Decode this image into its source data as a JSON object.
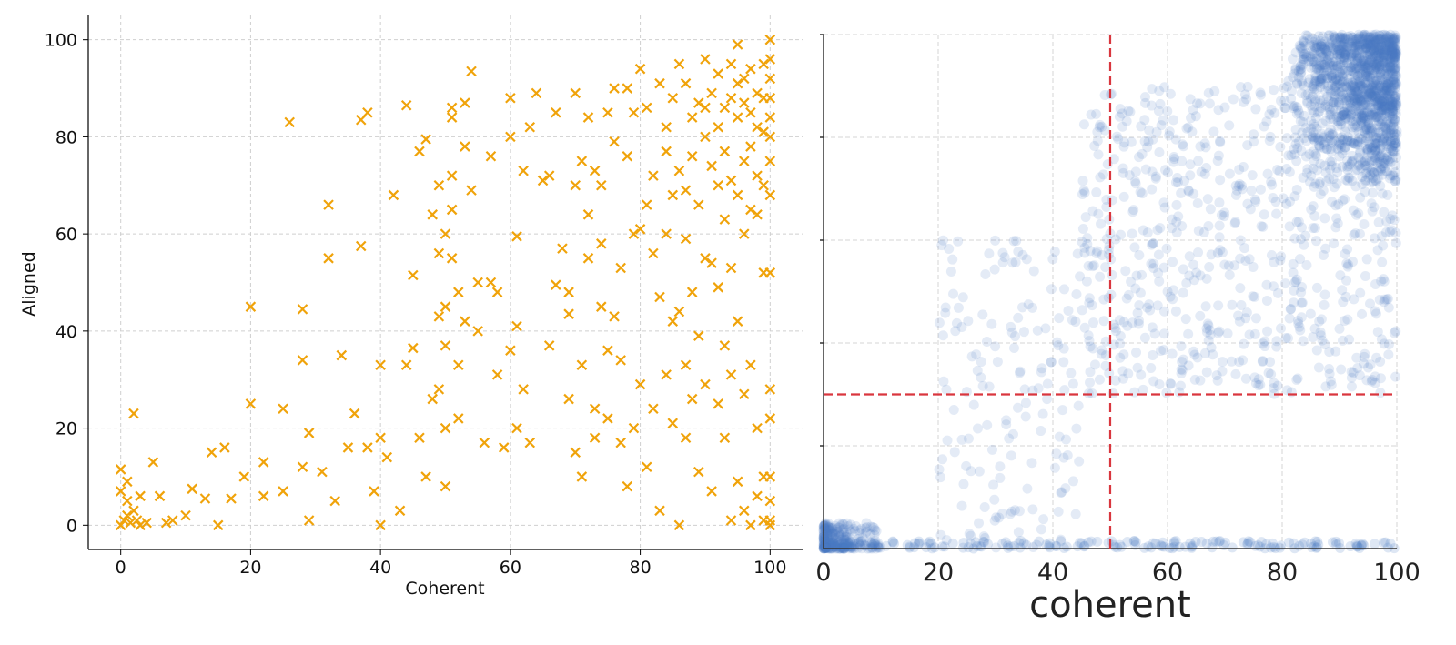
{
  "chart_data": [
    {
      "type": "scatter",
      "xlabel": "Coherent",
      "ylabel": "Aligned",
      "xlim": [
        -5,
        105
      ],
      "ylim": [
        -5,
        105
      ],
      "x_ticks": [
        0,
        20,
        40,
        60,
        80,
        100
      ],
      "y_ticks": [
        0,
        20,
        40,
        60,
        80,
        100
      ],
      "marker": "x",
      "color": "#F0A30A",
      "grid": true,
      "series": [
        {
          "points": [
            [
              0,
              0
            ],
            [
              0.5,
              1
            ],
            [
              1,
              2
            ],
            [
              1.5,
              0.5
            ],
            [
              2,
              3
            ],
            [
              2.5,
              1
            ],
            [
              3,
              0
            ],
            [
              0,
              7
            ],
            [
              0,
              11.5
            ],
            [
              1,
              9
            ],
            [
              1,
              5
            ],
            [
              2,
              23
            ],
            [
              3,
              6
            ],
            [
              4,
              0.5
            ],
            [
              5,
              13
            ],
            [
              6,
              6
            ],
            [
              7,
              0.5
            ],
            [
              8,
              1
            ],
            [
              10,
              2
            ],
            [
              11,
              7.5
            ],
            [
              13,
              5.5
            ],
            [
              14,
              15
            ],
            [
              15,
              0
            ],
            [
              16,
              16
            ],
            [
              17,
              5.5
            ],
            [
              19,
              10
            ],
            [
              20,
              25
            ],
            [
              20,
              45
            ],
            [
              22,
              13
            ],
            [
              22,
              6
            ],
            [
              25,
              24
            ],
            [
              25,
              7
            ],
            [
              26,
              83
            ],
            [
              28,
              44.5
            ],
            [
              28,
              12
            ],
            [
              28,
              34
            ],
            [
              29,
              19
            ],
            [
              29,
              1
            ],
            [
              31,
              11
            ],
            [
              32,
              66
            ],
            [
              32,
              55
            ],
            [
              33,
              5
            ],
            [
              34,
              35
            ],
            [
              35,
              16
            ],
            [
              36,
              23
            ],
            [
              37,
              57.5
            ],
            [
              37,
              83.5
            ],
            [
              38,
              85
            ],
            [
              38,
              16
            ],
            [
              39,
              7
            ],
            [
              40,
              18
            ],
            [
              40,
              33
            ],
            [
              40,
              0
            ],
            [
              41,
              14
            ],
            [
              42,
              68
            ],
            [
              43,
              3
            ],
            [
              44,
              33
            ],
            [
              44,
              86.5
            ],
            [
              45,
              51.5
            ],
            [
              45,
              36.5
            ],
            [
              46,
              18
            ],
            [
              46,
              77
            ],
            [
              47,
              79.5
            ],
            [
              47,
              10
            ],
            [
              48,
              26
            ],
            [
              48,
              64
            ],
            [
              49,
              70
            ],
            [
              49,
              56
            ],
            [
              49,
              43
            ],
            [
              49,
              28
            ],
            [
              50,
              60
            ],
            [
              50,
              45
            ],
            [
              50,
              37
            ],
            [
              50,
              20
            ],
            [
              50,
              8
            ],
            [
              51,
              84
            ],
            [
              51,
              86
            ],
            [
              51,
              72
            ],
            [
              51,
              65
            ],
            [
              51,
              55
            ],
            [
              52,
              48
            ],
            [
              52,
              33
            ],
            [
              52,
              22
            ],
            [
              53,
              87
            ],
            [
              53,
              78
            ],
            [
              53,
              42
            ],
            [
              54,
              93.5
            ],
            [
              54,
              69
            ],
            [
              55,
              50
            ],
            [
              55,
              40
            ],
            [
              56,
              17
            ],
            [
              57,
              76
            ],
            [
              57,
              50
            ],
            [
              58,
              48
            ],
            [
              58,
              31
            ],
            [
              59,
              16
            ],
            [
              60,
              80
            ],
            [
              60,
              88
            ],
            [
              60,
              36
            ],
            [
              61,
              20
            ],
            [
              61,
              41
            ],
            [
              61,
              59.5
            ],
            [
              62,
              73
            ],
            [
              62,
              28
            ],
            [
              63,
              82
            ],
            [
              63,
              17
            ],
            [
              64,
              89
            ],
            [
              65,
              71
            ],
            [
              66,
              37
            ],
            [
              66,
              72
            ],
            [
              67,
              85
            ],
            [
              67,
              49.5
            ],
            [
              68,
              57
            ],
            [
              69,
              43.5
            ],
            [
              69,
              48
            ],
            [
              69,
              26
            ],
            [
              70,
              89
            ],
            [
              70,
              70
            ],
            [
              70,
              15
            ],
            [
              71,
              75
            ],
            [
              71,
              33
            ],
            [
              71,
              10
            ],
            [
              72,
              84
            ],
            [
              72,
              55
            ],
            [
              72,
              64
            ],
            [
              73,
              18
            ],
            [
              73,
              24
            ],
            [
              73,
              73
            ],
            [
              74,
              58
            ],
            [
              74,
              70
            ],
            [
              74,
              45
            ],
            [
              75,
              85
            ],
            [
              75,
              36
            ],
            [
              75,
              22
            ],
            [
              76,
              79
            ],
            [
              76,
              90
            ],
            [
              76,
              43
            ],
            [
              77,
              34
            ],
            [
              77,
              53
            ],
            [
              77,
              17
            ],
            [
              78,
              90
            ],
            [
              78,
              76
            ],
            [
              78,
              8
            ],
            [
              79,
              85
            ],
            [
              79,
              60
            ],
            [
              79,
              20
            ],
            [
              80,
              94
            ],
            [
              80,
              61
            ],
            [
              80,
              29
            ],
            [
              81,
              86
            ],
            [
              81,
              66
            ],
            [
              81,
              12
            ],
            [
              82,
              72
            ],
            [
              82,
              56
            ],
            [
              82,
              24
            ],
            [
              83,
              91
            ],
            [
              83,
              47
            ],
            [
              83,
              3
            ],
            [
              84,
              82
            ],
            [
              84,
              60
            ],
            [
              84,
              77
            ],
            [
              84,
              31
            ],
            [
              85,
              88
            ],
            [
              85,
              68
            ],
            [
              85,
              42
            ],
            [
              85,
              21
            ],
            [
              86,
              95
            ],
            [
              86,
              73
            ],
            [
              86,
              44
            ],
            [
              86,
              0
            ],
            [
              87,
              91
            ],
            [
              87,
              69
            ],
            [
              87,
              59
            ],
            [
              87,
              33
            ],
            [
              87,
              18
            ],
            [
              88,
              84
            ],
            [
              88,
              76
            ],
            [
              88,
              48
            ],
            [
              88,
              26
            ],
            [
              89,
              87
            ],
            [
              89,
              66
            ],
            [
              89,
              39
            ],
            [
              89,
              11
            ],
            [
              90,
              96
            ],
            [
              90,
              86
            ],
            [
              90,
              80
            ],
            [
              90,
              55
            ],
            [
              90,
              29
            ],
            [
              91,
              89
            ],
            [
              91,
              74
            ],
            [
              91,
              54
            ],
            [
              91,
              7
            ],
            [
              92,
              93
            ],
            [
              92,
              82
            ],
            [
              92,
              70
            ],
            [
              92,
              49
            ],
            [
              92,
              25
            ],
            [
              93,
              86
            ],
            [
              93,
              77
            ],
            [
              93,
              63
            ],
            [
              93,
              37
            ],
            [
              93,
              18
            ],
            [
              94,
              95
            ],
            [
              94,
              88
            ],
            [
              94,
              71
            ],
            [
              94,
              53
            ],
            [
              94,
              31
            ],
            [
              94,
              1
            ],
            [
              95,
              99
            ],
            [
              95,
              91
            ],
            [
              95,
              84
            ],
            [
              95,
              68
            ],
            [
              95,
              42
            ],
            [
              95,
              9
            ],
            [
              96,
              92
            ],
            [
              96,
              87
            ],
            [
              96,
              75
            ],
            [
              96,
              60
            ],
            [
              96,
              27
            ],
            [
              96,
              3
            ],
            [
              97,
              94
            ],
            [
              97,
              85
            ],
            [
              97,
              78
            ],
            [
              97,
              65
            ],
            [
              97,
              33
            ],
            [
              97,
              0
            ],
            [
              98,
              89
            ],
            [
              98,
              82
            ],
            [
              98,
              72
            ],
            [
              98,
              64
            ],
            [
              98,
              20
            ],
            [
              98,
              6
            ],
            [
              99,
              95
            ],
            [
              99,
              88
            ],
            [
              99,
              81
            ],
            [
              99,
              70
            ],
            [
              99,
              52
            ],
            [
              99,
              10
            ],
            [
              99,
              1
            ],
            [
              100,
              100
            ],
            [
              100,
              96
            ],
            [
              100,
              92
            ],
            [
              100,
              88
            ],
            [
              100,
              84
            ],
            [
              100,
              80
            ],
            [
              100,
              75
            ],
            [
              100,
              68
            ],
            [
              100,
              52
            ],
            [
              100,
              28
            ],
            [
              100,
              22
            ],
            [
              100,
              10
            ],
            [
              100,
              5
            ],
            [
              100,
              1
            ],
            [
              100,
              0
            ]
          ]
        }
      ]
    },
    {
      "type": "scatter",
      "xlabel": "coherent",
      "xlim": [
        0,
        100
      ],
      "ylim": [
        0,
        100
      ],
      "x_ticks": [
        0,
        20,
        40,
        60,
        80,
        100
      ],
      "marker": "circle",
      "color": "#4A7CC0",
      "opacity": 0.15,
      "grid": true,
      "reference_lines": {
        "vertical_x": 50,
        "horizontal_y": 30,
        "color": "#D9363E",
        "style": "dashed"
      },
      "density_regions": [
        {
          "x": [
            80,
            100
          ],
          "y": [
            70,
            100
          ],
          "level": "very high"
        },
        {
          "x": [
            0,
            10
          ],
          "y": [
            0,
            5
          ],
          "level": "high"
        },
        {
          "x": [
            45,
            100
          ],
          "y": [
            30,
            90
          ],
          "level": "medium"
        },
        {
          "x": [
            20,
            45
          ],
          "y": [
            0,
            60
          ],
          "level": "low"
        }
      ]
    }
  ]
}
